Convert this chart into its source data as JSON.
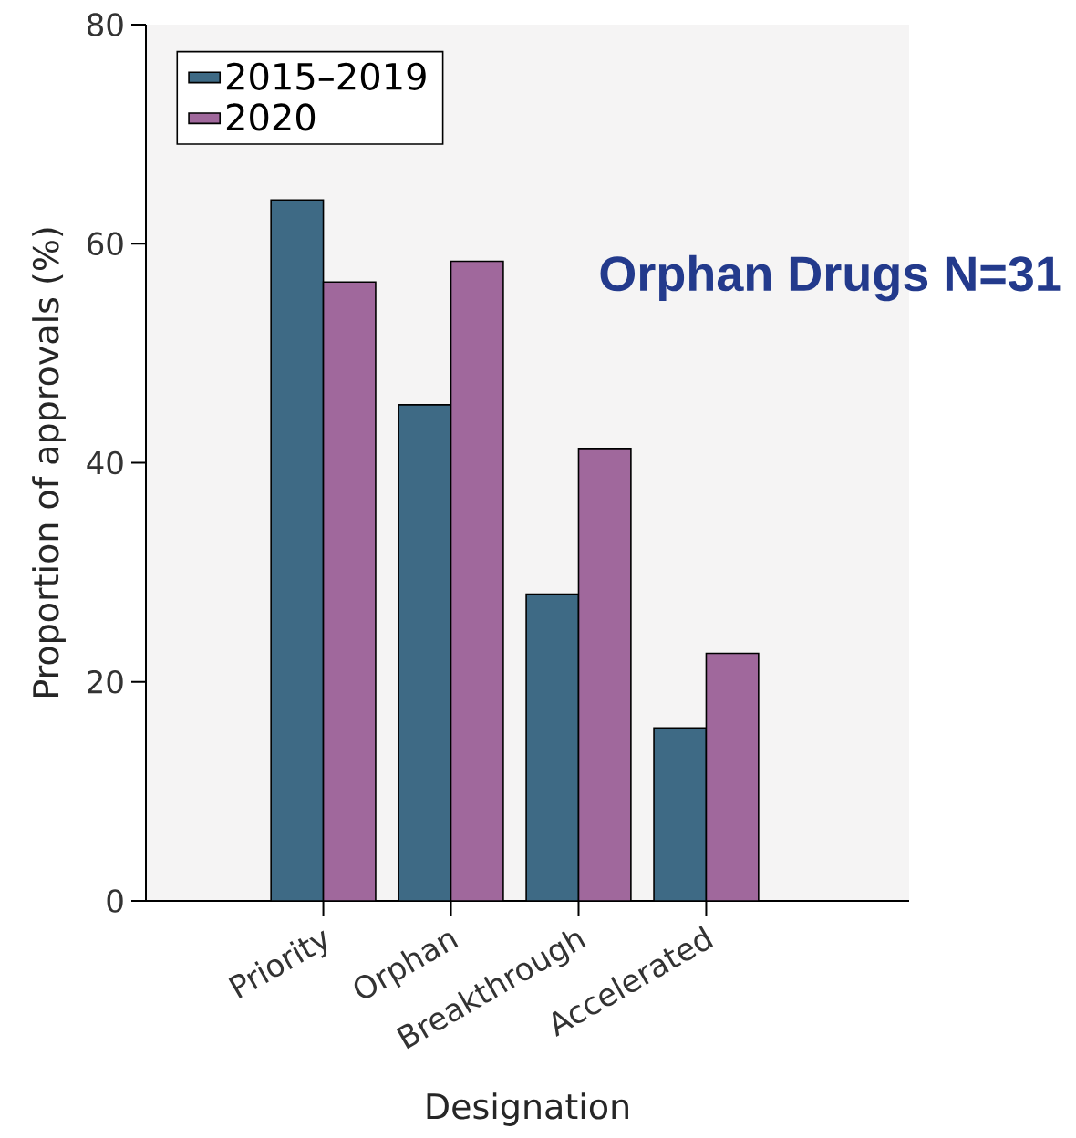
{
  "chart_data": {
    "type": "bar",
    "xlabel": "Designation",
    "ylabel": "Proportion of approvals (%)",
    "categories": [
      "Priority",
      "Orphan",
      "Breakthrough",
      "Accelerated"
    ],
    "series": [
      {
        "name": "2015–2019",
        "color": "#3e6a85",
        "values": [
          64,
          45.3,
          28,
          15.8
        ]
      },
      {
        "name": "2020",
        "color": "#a0689c",
        "values": [
          56.5,
          58.4,
          41.3,
          22.6
        ]
      }
    ],
    "ylim": [
      0,
      80
    ],
    "yticks": [
      0,
      20,
      40,
      60,
      80
    ],
    "grid": false,
    "legend": "top left",
    "annotations": [
      "Orphan Drugs N=31"
    ]
  }
}
